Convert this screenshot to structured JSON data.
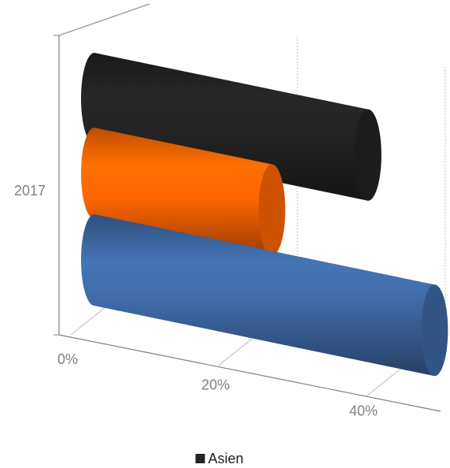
{
  "chart_data": {
    "type": "bar3d",
    "categories": [
      "2017"
    ],
    "series": [
      {
        "name": "Asien",
        "color": "#232323",
        "values": [
          37
        ]
      },
      {
        "color": "#ff6600",
        "values": [
          24
        ]
      },
      {
        "color": "#3f6aa6",
        "values": [
          46
        ]
      }
    ],
    "xlim": [
      0,
      50
    ],
    "xticks": [
      {
        "value": 0,
        "label": "0%"
      },
      {
        "value": 20,
        "label": "20%"
      },
      {
        "value": 40,
        "label": "40%"
      }
    ],
    "grid": true
  }
}
